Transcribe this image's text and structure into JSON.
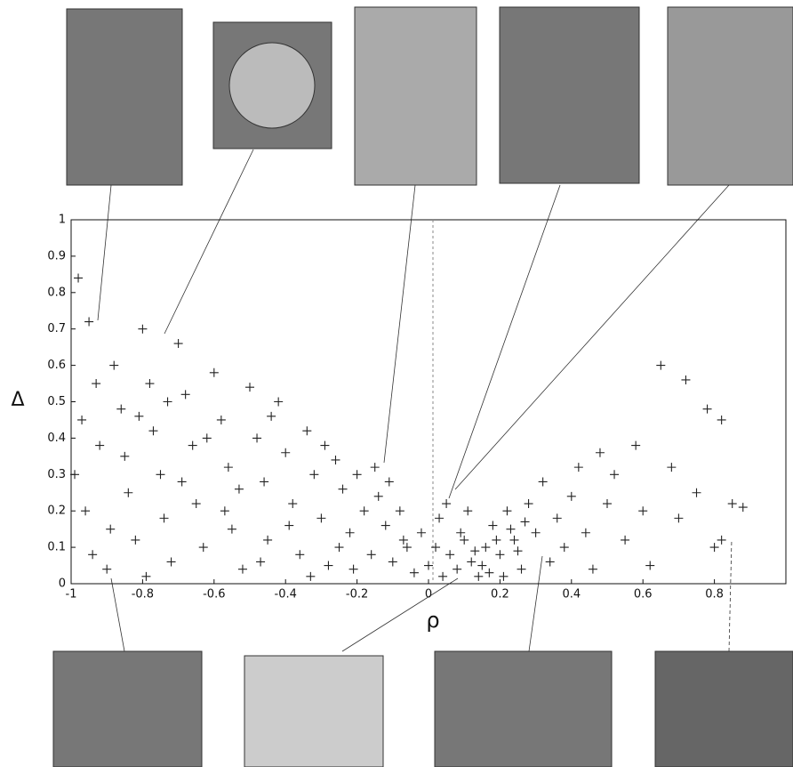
{
  "chart_data": {
    "type": "scatter",
    "x_label": "ρ",
    "y_label": "Δ",
    "xlim": [
      -1,
      1
    ],
    "ylim": [
      0,
      1
    ],
    "xticks": [
      -1,
      -0.8,
      -0.6,
      -0.4,
      -0.2,
      0,
      0.2,
      0.4,
      0.6,
      0.8
    ],
    "yticks": [
      0,
      0.1,
      0.2,
      0.3,
      0.4,
      0.5,
      0.6,
      0.7,
      0.8,
      0.9,
      1
    ],
    "color": "#222",
    "x": [
      -0.98,
      -0.95,
      -0.93,
      -0.97,
      -0.99,
      -0.96,
      -0.94,
      -0.9,
      -0.88,
      -0.86,
      -0.85,
      -0.84,
      -0.82,
      -0.8,
      -0.78,
      -0.77,
      -0.75,
      -0.74,
      -0.72,
      -0.7,
      -0.68,
      -0.66,
      -0.65,
      -0.63,
      -0.6,
      -0.58,
      -0.56,
      -0.55,
      -0.52,
      -0.5,
      -0.48,
      -0.46,
      -0.45,
      -0.42,
      -0.4,
      -0.38,
      -0.36,
      -0.34,
      -0.32,
      -0.3,
      -0.28,
      -0.26,
      -0.24,
      -0.22,
      -0.2,
      -0.18,
      -0.16,
      -0.14,
      -0.12,
      -0.1,
      -0.08,
      -0.06,
      -0.04,
      -0.02,
      0,
      0.02,
      0.04,
      0.06,
      0.08,
      0.1,
      0.12,
      0.14,
      0.16,
      0.18,
      0.2,
      0.22,
      0.24,
      0.26,
      0.28,
      0.3,
      0.32,
      0.34,
      0.36,
      0.38,
      0.4,
      0.42,
      0.44,
      0.46,
      0.48,
      0.5,
      0.52,
      0.55,
      0.58,
      0.6,
      0.62,
      0.65,
      0.68,
      0.7,
      0.72,
      0.75,
      0.78,
      0.8,
      0.82,
      0.85,
      -0.92,
      -0.89,
      -0.81,
      -0.79,
      -0.73,
      -0.69,
      -0.62,
      -0.57,
      -0.53,
      -0.47,
      -0.44,
      -0.39,
      -0.33,
      -0.29,
      -0.25,
      -0.21,
      -0.15,
      -0.11,
      -0.07,
      0.03,
      0.05,
      0.09,
      0.11,
      0.13,
      0.15,
      0.17,
      0.19,
      0.21,
      0.23,
      0.25,
      0.27,
      0.82,
      0.88
    ],
    "values": [
      0.84,
      0.72,
      0.55,
      0.45,
      0.3,
      0.2,
      0.08,
      0.04,
      0.6,
      0.48,
      0.35,
      0.25,
      0.12,
      0.7,
      0.55,
      0.42,
      0.3,
      0.18,
      0.06,
      0.66,
      0.52,
      0.38,
      0.22,
      0.1,
      0.58,
      0.45,
      0.32,
      0.15,
      0.04,
      0.54,
      0.4,
      0.28,
      0.12,
      0.5,
      0.36,
      0.22,
      0.08,
      0.42,
      0.3,
      0.18,
      0.05,
      0.34,
      0.26,
      0.14,
      0.3,
      0.2,
      0.08,
      0.24,
      0.16,
      0.06,
      0.2,
      0.1,
      0.03,
      0.14,
      0.05,
      0.1,
      0.02,
      0.08,
      0.04,
      0.12,
      0.06,
      0.02,
      0.1,
      0.16,
      0.08,
      0.2,
      0.12,
      0.04,
      0.22,
      0.14,
      0.28,
      0.06,
      0.18,
      0.1,
      0.24,
      0.32,
      0.14,
      0.04,
      0.36,
      0.22,
      0.3,
      0.12,
      0.38,
      0.2,
      0.05,
      0.6,
      0.32,
      0.18,
      0.56,
      0.25,
      0.48,
      0.1,
      0.45,
      0.22,
      0.38,
      0.15,
      0.46,
      0.02,
      0.5,
      0.28,
      0.4,
      0.2,
      0.26,
      0.06,
      0.46,
      0.16,
      0.02,
      0.38,
      0.1,
      0.04,
      0.32,
      0.28,
      0.12,
      0.18,
      0.22,
      0.14,
      0.2,
      0.09,
      0.05,
      0.03,
      0.12,
      0.02,
      0.15,
      0.09,
      0.17,
      0.12,
      0.21
    ]
  }
}
